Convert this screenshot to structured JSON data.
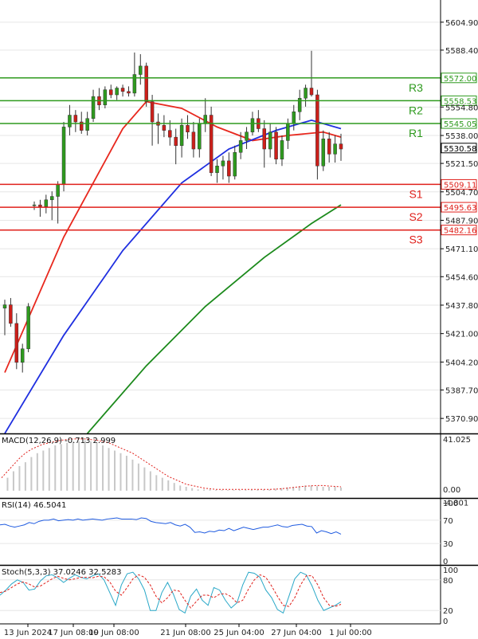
{
  "chart_data": [
    {
      "type": "candlestick",
      "name_shown": "",
      "y_ticks": [
        "5604.90",
        "5588.40",
        "5554.80",
        "5538.00",
        "5521.50",
        "5504.70",
        "5487.90",
        "5471.10",
        "5454.60",
        "5437.80",
        "5421.00",
        "5404.20",
        "5387.70",
        "5370.90"
      ],
      "y_tick_values": [
        5604.9,
        5588.4,
        5554.8,
        5538.0,
        5521.5,
        5504.7,
        5487.9,
        5471.1,
        5454.6,
        5437.8,
        5421.0,
        5404.2,
        5387.7,
        5370.9
      ],
      "ylim": [
        5362.5,
        5618.0
      ],
      "current_price": "5530.58",
      "x_ticks": [
        "13 Jun 2024",
        "17 Jun 08:00",
        "19 Jun 08:00",
        "21 Jun 08:00",
        "25 Jun 04:00",
        "27 Jun 04:00",
        "1 Jul 00:00"
      ],
      "levels": [
        {
          "name": "R3",
          "value": 5572.0,
          "label": "5572.00",
          "color": "#2e9a1e"
        },
        {
          "name": "R2",
          "value": 5558.53,
          "label": "5558.53",
          "color": "#2e9a1e"
        },
        {
          "name": "R1",
          "value": 5545.05,
          "label": "5545.05",
          "color": "#2e9a1e"
        },
        {
          "name": "S1",
          "value": 5509.11,
          "label": "5509.11",
          "color": "#e0201b"
        },
        {
          "name": "S2",
          "value": 5495.63,
          "label": "5495.63",
          "color": "#e0201b"
        },
        {
          "name": "S3",
          "value": 5482.16,
          "label": "5482.16",
          "color": "#e0201b"
        }
      ],
      "candles": [
        {
          "o": 5436,
          "h": 5441,
          "l": 5420,
          "c": 5438
        },
        {
          "o": 5438,
          "h": 5442,
          "l": 5425,
          "c": 5427
        },
        {
          "o": 5427,
          "h": 5433,
          "l": 5400,
          "c": 5404
        },
        {
          "o": 5404,
          "h": 5415,
          "l": 5398,
          "c": 5412
        },
        {
          "o": 5412,
          "h": 5439,
          "l": 5410,
          "c": 5437
        },
        {
          "o": 5497,
          "h": 5499,
          "l": 5494,
          "c": 5497
        },
        {
          "o": 5497,
          "h": 5500,
          "l": 5490,
          "c": 5496
        },
        {
          "o": 5496,
          "h": 5503,
          "l": 5492,
          "c": 5500
        },
        {
          "o": 5500,
          "h": 5505,
          "l": 5488,
          "c": 5502
        },
        {
          "o": 5502,
          "h": 5511,
          "l": 5486,
          "c": 5509
        },
        {
          "o": 5509,
          "h": 5546,
          "l": 5505,
          "c": 5543
        },
        {
          "o": 5543,
          "h": 5556,
          "l": 5538,
          "c": 5550
        },
        {
          "o": 5550,
          "h": 5553,
          "l": 5540,
          "c": 5546
        },
        {
          "o": 5546,
          "h": 5552,
          "l": 5539,
          "c": 5541
        },
        {
          "o": 5541,
          "h": 5552,
          "l": 5538,
          "c": 5548
        },
        {
          "o": 5548,
          "h": 5565,
          "l": 5546,
          "c": 5561
        },
        {
          "o": 5561,
          "h": 5566,
          "l": 5553,
          "c": 5556
        },
        {
          "o": 5556,
          "h": 5567,
          "l": 5554,
          "c": 5565
        },
        {
          "o": 5565,
          "h": 5568,
          "l": 5560,
          "c": 5562
        },
        {
          "o": 5562,
          "h": 5567,
          "l": 5559,
          "c": 5566
        },
        {
          "o": 5566,
          "h": 5568,
          "l": 5561,
          "c": 5564
        },
        {
          "o": 5564,
          "h": 5567,
          "l": 5561,
          "c": 5563
        },
        {
          "o": 5563,
          "h": 5587,
          "l": 5561,
          "c": 5574
        },
        {
          "o": 5574,
          "h": 5586,
          "l": 5568,
          "c": 5579
        },
        {
          "o": 5579,
          "h": 5581,
          "l": 5555,
          "c": 5558
        },
        {
          "o": 5558,
          "h": 5562,
          "l": 5532,
          "c": 5546
        },
        {
          "o": 5546,
          "h": 5551,
          "l": 5533,
          "c": 5544
        },
        {
          "o": 5544,
          "h": 5550,
          "l": 5537,
          "c": 5541
        },
        {
          "o": 5541,
          "h": 5547,
          "l": 5532,
          "c": 5537
        },
        {
          "o": 5537,
          "h": 5542,
          "l": 5521,
          "c": 5532
        },
        {
          "o": 5532,
          "h": 5548,
          "l": 5525,
          "c": 5544
        },
        {
          "o": 5544,
          "h": 5550,
          "l": 5536,
          "c": 5540
        },
        {
          "o": 5540,
          "h": 5546,
          "l": 5525,
          "c": 5530
        },
        {
          "o": 5530,
          "h": 5548,
          "l": 5525,
          "c": 5545
        },
        {
          "o": 5545,
          "h": 5560,
          "l": 5540,
          "c": 5550
        },
        {
          "o": 5550,
          "h": 5555,
          "l": 5514,
          "c": 5516
        },
        {
          "o": 5516,
          "h": 5524,
          "l": 5510,
          "c": 5520
        },
        {
          "o": 5520,
          "h": 5526,
          "l": 5512,
          "c": 5523
        },
        {
          "o": 5523,
          "h": 5528,
          "l": 5510,
          "c": 5514
        },
        {
          "o": 5514,
          "h": 5532,
          "l": 5512,
          "c": 5528
        },
        {
          "o": 5528,
          "h": 5540,
          "l": 5524,
          "c": 5535
        },
        {
          "o": 5535,
          "h": 5543,
          "l": 5530,
          "c": 5540
        },
        {
          "o": 5540,
          "h": 5552,
          "l": 5538,
          "c": 5548
        },
        {
          "o": 5548,
          "h": 5553,
          "l": 5540,
          "c": 5542
        },
        {
          "o": 5542,
          "h": 5547,
          "l": 5519,
          "c": 5530
        },
        {
          "o": 5530,
          "h": 5545,
          "l": 5525,
          "c": 5540
        },
        {
          "o": 5540,
          "h": 5543,
          "l": 5521,
          "c": 5524
        },
        {
          "o": 5524,
          "h": 5538,
          "l": 5520,
          "c": 5535
        },
        {
          "o": 5535,
          "h": 5548,
          "l": 5530,
          "c": 5545
        },
        {
          "o": 5545,
          "h": 5556,
          "l": 5541,
          "c": 5552
        },
        {
          "o": 5552,
          "h": 5565,
          "l": 5547,
          "c": 5560
        },
        {
          "o": 5560,
          "h": 5568,
          "l": 5555,
          "c": 5566
        },
        {
          "o": 5566,
          "h": 5588,
          "l": 5561,
          "c": 5562
        },
        {
          "o": 5562,
          "h": 5565,
          "l": 5512,
          "c": 5520
        },
        {
          "o": 5520,
          "h": 5541,
          "l": 5517,
          "c": 5536
        },
        {
          "o": 5536,
          "h": 5540,
          "l": 5522,
          "c": 5527
        },
        {
          "o": 5527,
          "h": 5538,
          "l": 5522,
          "c": 5533
        },
        {
          "o": 5533,
          "h": 5539,
          "l": 5523,
          "c": 5530
        }
      ],
      "moving_averages": [
        {
          "color": "#e8281e",
          "values": [
            [
              0,
              5398
            ],
            [
              10,
              5478
            ],
            [
              20,
              5542
            ],
            [
              24,
              5558
            ],
            [
              30,
              5554
            ],
            [
              36,
              5543
            ],
            [
              42,
              5535
            ],
            [
              48,
              5538
            ],
            [
              54,
              5540
            ],
            [
              57,
              5537
            ]
          ]
        },
        {
          "color": "#1f2fe0",
          "values": [
            [
              0,
              5362
            ],
            [
              10,
              5420
            ],
            [
              20,
              5470
            ],
            [
              30,
              5510
            ],
            [
              38,
              5530
            ],
            [
              46,
              5541
            ],
            [
              52,
              5547
            ],
            [
              57,
              5542
            ]
          ]
        },
        {
          "color": "#1c8a1c",
          "values": [
            [
              14,
              5362
            ],
            [
              24,
              5402
            ],
            [
              34,
              5437
            ],
            [
              44,
              5466
            ],
            [
              52,
              5486
            ],
            [
              57,
              5497
            ]
          ]
        }
      ]
    },
    {
      "type": "bar",
      "name_shown": "MACD(12,26,9)",
      "label": "MACD(12,26,9) -0.713 2.999",
      "y_ticks": [
        "41.025",
        "0.00",
        "-4.801"
      ],
      "y_tick_values": [
        41.025,
        0,
        -4.801
      ],
      "ylim": [
        -5,
        43
      ],
      "histogram": [
        0,
        10,
        15,
        19,
        22,
        26,
        29,
        31,
        33,
        35,
        36,
        37,
        38,
        38,
        39,
        38,
        37,
        35,
        33,
        31,
        29,
        27,
        24,
        21,
        18,
        15,
        12,
        10,
        8,
        6,
        4,
        3,
        2,
        1,
        1,
        1,
        0.5,
        0.5,
        0.5,
        0.5,
        0.5,
        0.5,
        0.6,
        0.7,
        0.8,
        0.9,
        1.5,
        2,
        2.5,
        3,
        3.5,
        4,
        4,
        3.5,
        3,
        3,
        3,
        2.5
      ],
      "signal_line": [
        10,
        15,
        20,
        25,
        29,
        32,
        34,
        36,
        37,
        38,
        39,
        39.5,
        40,
        40,
        40,
        39.5,
        39,
        38,
        37,
        35,
        33,
        31,
        29,
        26,
        23,
        20,
        17,
        14,
        11,
        9,
        7,
        5,
        4,
        3,
        2,
        1.5,
        1,
        1,
        1,
        1,
        1,
        1,
        1,
        1,
        1,
        1,
        1.2,
        1.5,
        2,
        2.5,
        3,
        3.5,
        3.8,
        4,
        4,
        3.6,
        3.3,
        3
      ],
      "signal_color": "#e0201b"
    },
    {
      "type": "line",
      "name_shown": "RSI(14)",
      "label": "RSI(14) 46.5041",
      "y_ticks": [
        "100",
        "70",
        "30",
        "0"
      ],
      "y_tick_values": [
        100,
        70,
        30,
        0
      ],
      "ylim": [
        0,
        100
      ],
      "values": [
        62,
        63,
        60,
        58,
        60,
        62,
        66,
        64,
        68,
        70,
        70,
        72,
        69,
        70,
        71,
        70,
        72,
        70,
        71,
        72,
        71,
        70,
        72,
        73,
        74,
        72,
        72,
        72,
        71,
        74,
        73,
        68,
        66,
        65,
        64,
        66,
        62,
        60,
        63,
        58,
        49,
        50,
        48,
        51,
        50,
        53,
        52,
        56,
        52,
        55,
        58,
        56,
        54,
        56,
        58,
        58,
        60,
        62,
        59,
        58,
        61,
        62,
        63,
        60,
        59,
        48,
        52,
        50,
        47,
        50,
        46
      ],
      "color": "#1f5be0"
    },
    {
      "type": "line",
      "name_shown": "Stoch(5,3,3)",
      "label": "Stoch(5,3,3) 37.0246 32.5283",
      "y_ticks": [
        "100",
        "80",
        "20",
        "0"
      ],
      "y_tick_values": [
        100,
        80,
        20,
        0
      ],
      "ylim": [
        0,
        100
      ],
      "main": [
        50,
        60,
        72,
        80,
        75,
        60,
        62,
        78,
        88,
        90,
        84,
        75,
        83,
        90,
        85,
        82,
        88,
        92,
        80,
        55,
        30,
        70,
        92,
        95,
        82,
        60,
        20,
        20,
        55,
        75,
        52,
        22,
        15,
        48,
        62,
        40,
        30,
        65,
        60,
        40,
        25,
        35,
        70,
        95,
        93,
        85,
        60,
        45,
        22,
        15,
        48,
        82,
        95,
        90,
        68,
        40,
        20,
        25,
        30,
        37
      ],
      "signal": [
        55,
        58,
        65,
        72,
        76,
        72,
        66,
        68,
        75,
        82,
        87,
        83,
        80,
        82,
        85,
        85,
        84,
        87,
        86,
        76,
        58,
        50,
        65,
        82,
        90,
        85,
        70,
        48,
        35,
        45,
        60,
        58,
        40,
        25,
        38,
        50,
        50,
        45,
        52,
        53,
        47,
        35,
        40,
        62,
        80,
        90,
        85,
        68,
        48,
        30,
        28,
        45,
        70,
        88,
        88,
        70,
        45,
        30,
        28,
        32
      ],
      "main_color": "#2aa8c8",
      "signal_color": "#e0201b"
    }
  ],
  "page": {
    "background": "#ffffff",
    "grid_color": "#e6e6e6",
    "axis_color": "#000000",
    "bull_color": "#2e9a1e",
    "bear_color": "#cc1f1a",
    "neutral_color": "#888888"
  }
}
